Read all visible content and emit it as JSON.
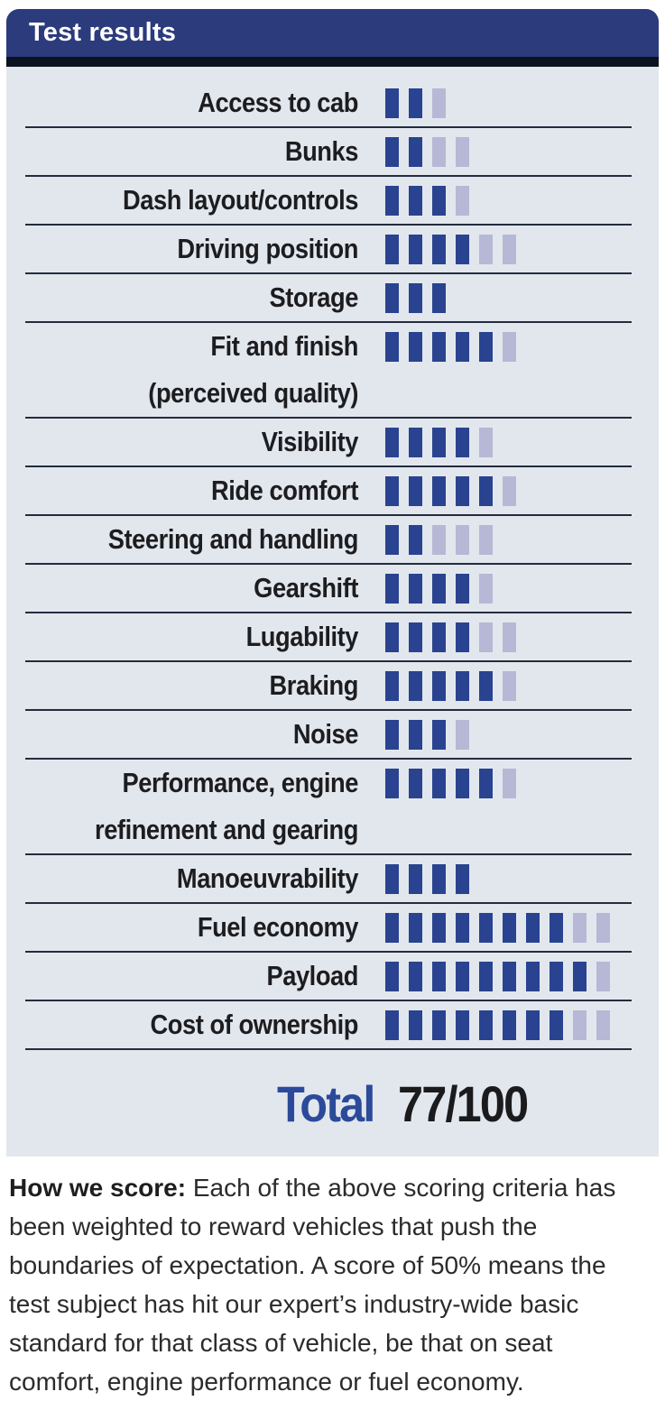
{
  "panel": {
    "header": {
      "title": "Test results"
    },
    "rows": [
      {
        "label": "Access to cab",
        "label2": "",
        "filled": 2,
        "empty": 1
      },
      {
        "label": "Bunks",
        "label2": "",
        "filled": 2,
        "empty": 2
      },
      {
        "label": "Dash layout/controls",
        "label2": "",
        "filled": 3,
        "empty": 1
      },
      {
        "label": "Driving position",
        "label2": "",
        "filled": 4,
        "empty": 2
      },
      {
        "label": "Storage",
        "label2": "",
        "filled": 3,
        "empty": 0
      },
      {
        "label": "Fit and finish",
        "label2": "(perceived quality)",
        "filled": 5,
        "empty": 1
      },
      {
        "label": "Visibility",
        "label2": "",
        "filled": 4,
        "empty": 1
      },
      {
        "label": "Ride comfort",
        "label2": "",
        "filled": 5,
        "empty": 1
      },
      {
        "label": "Steering and handling",
        "label2": "",
        "filled": 2,
        "empty": 3
      },
      {
        "label": "Gearshift",
        "label2": "",
        "filled": 4,
        "empty": 1
      },
      {
        "label": "Lugability",
        "label2": "",
        "filled": 4,
        "empty": 2
      },
      {
        "label": "Braking",
        "label2": "",
        "filled": 5,
        "empty": 1
      },
      {
        "label": "Noise",
        "label2": "",
        "filled": 3,
        "empty": 1
      },
      {
        "label": "Performance, engine",
        "label2": "refinement and gearing",
        "filled": 5,
        "empty": 1
      },
      {
        "label": "Manoeuvrability",
        "label2": "",
        "filled": 4,
        "empty": 0
      },
      {
        "label": "Fuel economy",
        "label2": "",
        "filled": 8,
        "empty": 2
      },
      {
        "label": "Payload",
        "label2": "",
        "filled": 9,
        "empty": 1
      },
      {
        "label": "Cost of ownership",
        "label2": "",
        "filled": 8,
        "empty": 2
      }
    ],
    "total": {
      "label": "Total",
      "value": "77/100"
    }
  },
  "footnote": {
    "lead": "How we score:",
    "body": " Each of the above scoring criteria has been weighted to reward vehicles that push the boundaries of expectation. A score of 50% means the test subject has hit our expert’s industry-wide basic standard for that class of vehicle, be that on seat comfort, engine performance or fuel economy."
  },
  "colors": {
    "header_bg": "#2b3b7c",
    "header_band": "#0b1322",
    "panel_bg": "#e2e7ee",
    "block_filled": "#2a4390",
    "block_empty": "#b5b9d6",
    "separator": "#232c3e",
    "total_accent": "#2b4a9a"
  },
  "chart_data": {
    "type": "bar",
    "title": "Test results",
    "categories": [
      "Access to cab",
      "Bunks",
      "Dash layout/controls",
      "Driving position",
      "Storage",
      "Fit and finish (perceived quality)",
      "Visibility",
      "Ride comfort",
      "Steering and handling",
      "Gearshift",
      "Lugability",
      "Braking",
      "Noise",
      "Performance, engine refinement and gearing",
      "Manoeuvrability",
      "Fuel economy",
      "Payload",
      "Cost of ownership"
    ],
    "series": [
      {
        "name": "score (filled blocks)",
        "values": [
          2,
          2,
          3,
          4,
          3,
          5,
          4,
          5,
          2,
          4,
          4,
          5,
          3,
          5,
          4,
          8,
          9,
          8
        ]
      },
      {
        "name": "max (total blocks)",
        "values": [
          3,
          4,
          4,
          6,
          3,
          6,
          5,
          6,
          5,
          5,
          6,
          6,
          4,
          6,
          4,
          10,
          10,
          10
        ]
      }
    ],
    "legend_position": "none",
    "grid": false,
    "orientation": "horizontal",
    "total_label": "Total",
    "total_value": "77/100"
  }
}
